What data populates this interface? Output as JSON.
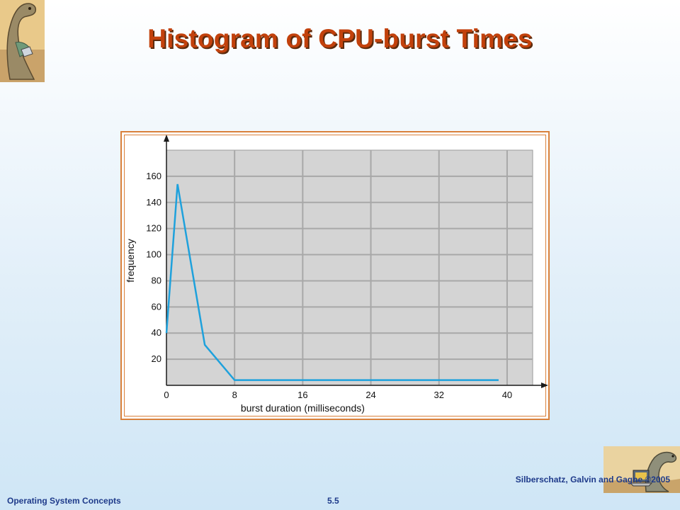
{
  "slide": {
    "title": "Histogram of CPU-burst Times",
    "footer_left": "Operating System Concepts",
    "footer_center": "5.5",
    "footer_right": "Silberschatz, Galvin and Gagne ©2005"
  },
  "colors": {
    "title": "#c2410c",
    "footer": "#1e3a8a",
    "frame": "#d9803a",
    "plot_bg": "#d4d4d4",
    "line": "#1ea1dc",
    "grid": "#a8a8a8"
  },
  "icons": [
    "dinosaur-logo",
    "dinosaur-laptop-logo"
  ],
  "chart_data": {
    "type": "line",
    "title": "",
    "xlabel": "burst duration (milliseconds)",
    "ylabel": "frequency",
    "xlim": [
      0,
      43
    ],
    "ylim": [
      0,
      180
    ],
    "xticks": [
      0,
      8,
      16,
      24,
      32,
      40
    ],
    "yticks": [
      20,
      40,
      60,
      80,
      100,
      120,
      140,
      160
    ],
    "grid": true,
    "legend": "none",
    "series": [
      {
        "x": [
          0,
          1.3,
          4.5,
          8,
          39
        ],
        "y": [
          40,
          154,
          31,
          4,
          4
        ]
      }
    ]
  }
}
